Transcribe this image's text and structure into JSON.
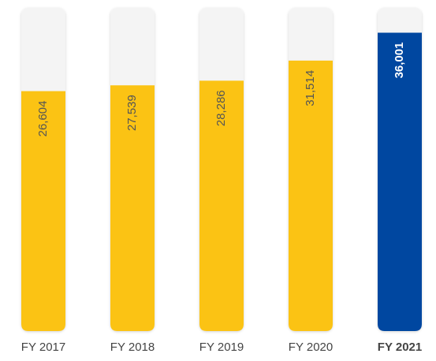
{
  "chart_data": {
    "type": "bar",
    "categories": [
      "FY 2017",
      "FY 2018",
      "FY 2019",
      "FY 2020",
      "FY 2021"
    ],
    "values": [
      26604,
      27539,
      28286,
      31514,
      36001
    ],
    "value_labels": [
      "26,604",
      "27,539",
      "28,286",
      "31,514",
      "36,001"
    ],
    "colors": [
      "#fbc314",
      "#fbc314",
      "#fbc314",
      "#fbc314",
      "#0047a0"
    ],
    "label_colors": [
      "#555555",
      "#555555",
      "#555555",
      "#555555",
      "#ffffff"
    ],
    "bold": [
      false,
      false,
      false,
      false,
      true
    ],
    "track_color": "#f4f4f4",
    "ylim": [
      -12000,
      40000
    ]
  }
}
